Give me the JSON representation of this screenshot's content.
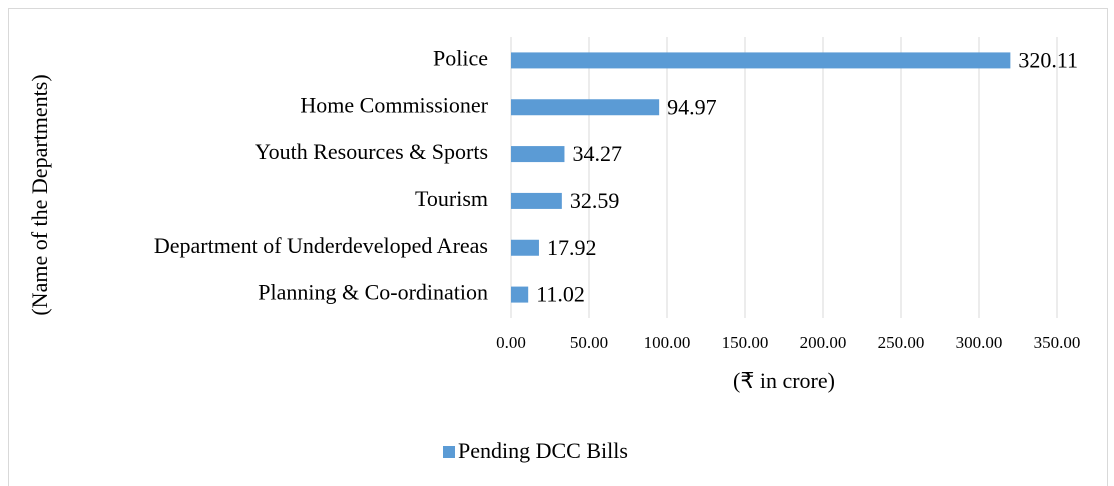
{
  "chart_data": {
    "type": "bar",
    "orientation": "horizontal",
    "x_label": "(₹ in crore)",
    "y_label": "(Name of the Departments)",
    "categories": [
      "Police",
      "Home Commissioner",
      "Youth Resources & Sports",
      "Tourism",
      "Department of Underdeveloped Areas",
      "Planning & Co-ordination"
    ],
    "series": [
      {
        "name": "Pending DCC Bills",
        "color": "#5b9bd5",
        "values": [
          320.11,
          94.97,
          34.27,
          32.59,
          17.92,
          11.02
        ]
      }
    ],
    "xlim": [
      0,
      350
    ],
    "xticks": [
      {
        "value": 0,
        "label": "0.00"
      },
      {
        "value": 50,
        "label": "50.00"
      },
      {
        "value": 100,
        "label": "100.00"
      },
      {
        "value": 150,
        "label": "150.00"
      },
      {
        "value": 200,
        "label": "200.00"
      },
      {
        "value": 250,
        "label": "250.00"
      },
      {
        "value": 300,
        "label": "300.00"
      },
      {
        "value": 350,
        "label": "350.00"
      }
    ],
    "grid": true,
    "legend": "bottom"
  }
}
